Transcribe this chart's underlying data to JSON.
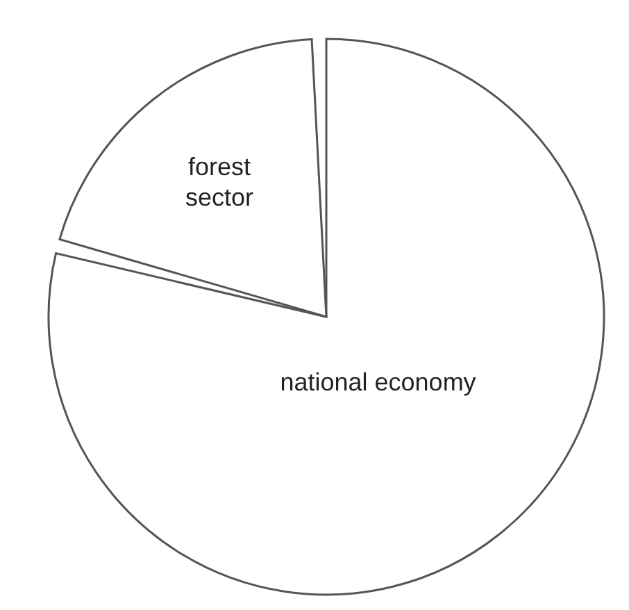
{
  "chart_data": {
    "type": "pie",
    "categories": [
      "national economy",
      "forest sector"
    ],
    "values": [
      80,
      20
    ],
    "colors": [
      "#ffffff",
      "#ffffff"
    ]
  }
}
